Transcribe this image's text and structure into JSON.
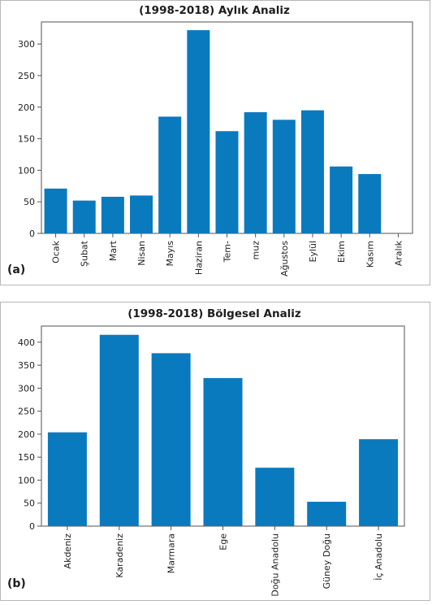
{
  "chart_data": [
    {
      "type": "bar",
      "title": "(1998-2018) Aylık Analiz",
      "panel_label": "(a)",
      "categories": [
        "Ocak",
        "Şubat",
        "Mart",
        "Nisan",
        "Mayıs",
        "Haziran",
        "Tem-",
        "muz",
        "Ağustos",
        "Eylül",
        "Ekim",
        "Kasım",
        "Aralık"
      ],
      "values": [
        71,
        52,
        58,
        60,
        185,
        322,
        162,
        192,
        180,
        195,
        106,
        94,
        0
      ],
      "yticks": [
        0,
        50,
        100,
        150,
        200,
        250,
        300
      ],
      "ylim": [
        0,
        335
      ],
      "xlabel": "",
      "ylabel": "",
      "bar_color": "#0a7abf",
      "grid": false
    },
    {
      "type": "bar",
      "title": "(1998-2018) Bölgesel Analiz",
      "panel_label": "(b)",
      "categories": [
        "Akdeniz",
        "Karadeniz",
        "Marmara",
        "Ege",
        "Doğu Anadolu",
        "Güney Doğu",
        "İç Anadolu"
      ],
      "values": [
        204,
        416,
        376,
        322,
        127,
        53,
        189
      ],
      "yticks": [
        0,
        50,
        100,
        150,
        200,
        250,
        300,
        350,
        400
      ],
      "ylim": [
        0,
        435
      ],
      "xlabel": "",
      "ylabel": "",
      "bar_color": "#0a7abf",
      "grid": false
    }
  ]
}
